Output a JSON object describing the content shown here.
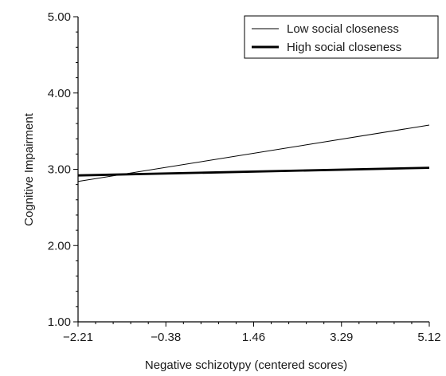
{
  "chart_data": {
    "type": "line",
    "title": "",
    "xlabel": "Negative schizotypy (centered scores)",
    "ylabel": "Cognitive Impairment",
    "x_ticks": [
      "−2.21",
      "−0.38",
      "1.46",
      "3.29",
      "5.12"
    ],
    "y_ticks": [
      "1.00",
      "2.00",
      "3.00",
      "4.00",
      "5.00"
    ],
    "xlim": [
      -2.21,
      5.12
    ],
    "ylim": [
      1.0,
      5.0
    ],
    "grid": false,
    "legend_position": "top-right",
    "series": [
      {
        "name": "Low social closeness",
        "x": [
          -2.21,
          5.12
        ],
        "y": [
          2.84,
          3.58
        ],
        "stroke": "thin"
      },
      {
        "name": "High social closeness",
        "x": [
          -2.21,
          5.12
        ],
        "y": [
          2.92,
          3.02
        ],
        "stroke": "thick"
      }
    ]
  }
}
